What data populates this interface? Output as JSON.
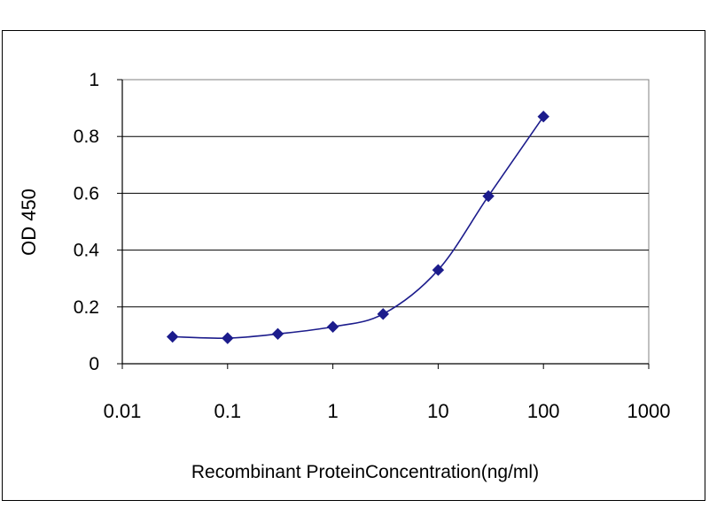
{
  "chart_data": {
    "type": "line",
    "title": "",
    "xlabel": "Recombinant ProteinConcentration(ng/ml)",
    "ylabel": "OD 450",
    "x_scale": "log",
    "xlim": [
      0.01,
      1000
    ],
    "ylim": [
      0,
      1
    ],
    "x_ticks": [
      "0.01",
      "0.1",
      "1",
      "10",
      "100",
      "1000"
    ],
    "y_ticks": [
      "0",
      "0.2",
      "0.4",
      "0.6",
      "0.8",
      "1"
    ],
    "grid": "horizontal",
    "legend": "none",
    "series": [
      {
        "color": "#1c1c8c",
        "marker": "diamond",
        "x": [
          0.03,
          0.1,
          0.3,
          1,
          3,
          10,
          30,
          100
        ],
        "y": [
          0.095,
          0.09,
          0.105,
          0.13,
          0.175,
          0.33,
          0.59,
          0.87
        ]
      }
    ]
  }
}
